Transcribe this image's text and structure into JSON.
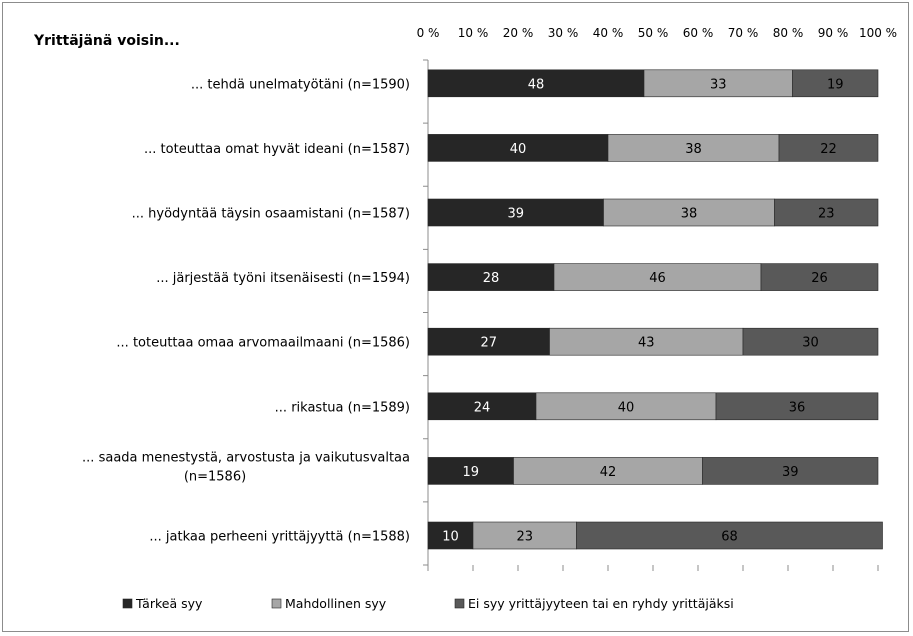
{
  "chart_data": {
    "type": "bar",
    "orientation": "horizontal",
    "stacked": "percent",
    "title": "Yrittäjänä voisin...",
    "xlim": [
      0,
      100
    ],
    "x_tick_labels": [
      "0 %",
      "10 %",
      "20 %",
      "30 %",
      "40 %",
      "50 %",
      "60 %",
      "70 %",
      "80 %",
      "90 %",
      "100 %"
    ],
    "x_axis_position": "top",
    "grid": false,
    "legend_position": "bottom",
    "categories": [
      [
        "... tehdä unelmatyötäni (n=1590)"
      ],
      [
        "... toteuttaa  omat hyvät ideani (n=1587)"
      ],
      [
        "... hyödyntää täysin osaamistani (n=1587)"
      ],
      [
        "... järjestää työni itsenäisesti (n=1594)"
      ],
      [
        "... toteuttaa  omaa arvomaailmaani (n=1586)"
      ],
      [
        "... rikastua (n=1589)"
      ],
      [
        "... saada menestystä, arvostusta ja vaikutusvaltaa",
        "(n=1586)"
      ],
      [
        "... jatkaa perheeni yrittäjyyttä (n=1588)"
      ]
    ],
    "series": [
      {
        "name": "Tärkeä syy",
        "color": "#262626",
        "label_color": "#ffffff",
        "values": [
          48,
          40,
          39,
          28,
          27,
          24,
          19,
          10
        ]
      },
      {
        "name": "Mahdollinen syy",
        "color": "#a6a6a6",
        "label_color": "#000000",
        "values": [
          33,
          38,
          38,
          46,
          43,
          40,
          42,
          23
        ]
      },
      {
        "name": "Ei syy yrittäjyyteen tai en ryhdy yrittäjäksi",
        "color": "#595959",
        "label_color": "#000000",
        "values": [
          19,
          22,
          23,
          26,
          30,
          36,
          39,
          68
        ]
      }
    ]
  }
}
